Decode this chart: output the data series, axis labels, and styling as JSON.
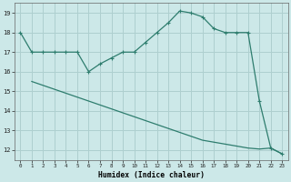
{
  "line1_x": [
    0,
    1,
    2,
    3,
    4,
    5,
    6,
    7,
    8,
    9,
    10,
    11,
    12,
    13,
    14,
    15,
    16,
    17,
    18,
    19,
    20,
    21,
    22,
    23
  ],
  "line1_y": [
    18.0,
    17.0,
    17.0,
    17.0,
    17.0,
    17.0,
    16.0,
    16.4,
    16.7,
    17.0,
    17.0,
    17.5,
    18.0,
    18.5,
    19.1,
    19.0,
    18.8,
    18.2,
    18.0,
    18.0,
    18.0,
    14.5,
    12.1,
    11.8
  ],
  "line2_x": [
    1,
    2,
    3,
    4,
    5,
    6,
    7,
    8,
    9,
    10,
    11,
    12,
    13,
    14,
    15,
    16,
    17,
    18,
    19,
    20,
    21,
    22,
    23
  ],
  "line2_y": [
    15.5,
    15.3,
    15.1,
    14.9,
    14.7,
    14.5,
    14.3,
    14.1,
    13.9,
    13.7,
    13.5,
    13.3,
    13.1,
    12.9,
    12.7,
    12.5,
    12.4,
    12.3,
    12.2,
    12.1,
    12.05,
    12.1,
    11.8
  ],
  "color": "#2e7d6e",
  "bg_color": "#cce8e8",
  "grid_color": "#aecfcf",
  "xlabel": "Humidex (Indice chaleur)",
  "ylim": [
    11.5,
    19.5
  ],
  "xlim": [
    -0.5,
    23.5
  ],
  "yticks": [
    12,
    13,
    14,
    15,
    16,
    17,
    18,
    19
  ],
  "xticks": [
    0,
    1,
    2,
    3,
    4,
    5,
    6,
    7,
    8,
    9,
    10,
    11,
    12,
    13,
    14,
    15,
    16,
    17,
    18,
    19,
    20,
    21,
    22,
    23
  ]
}
